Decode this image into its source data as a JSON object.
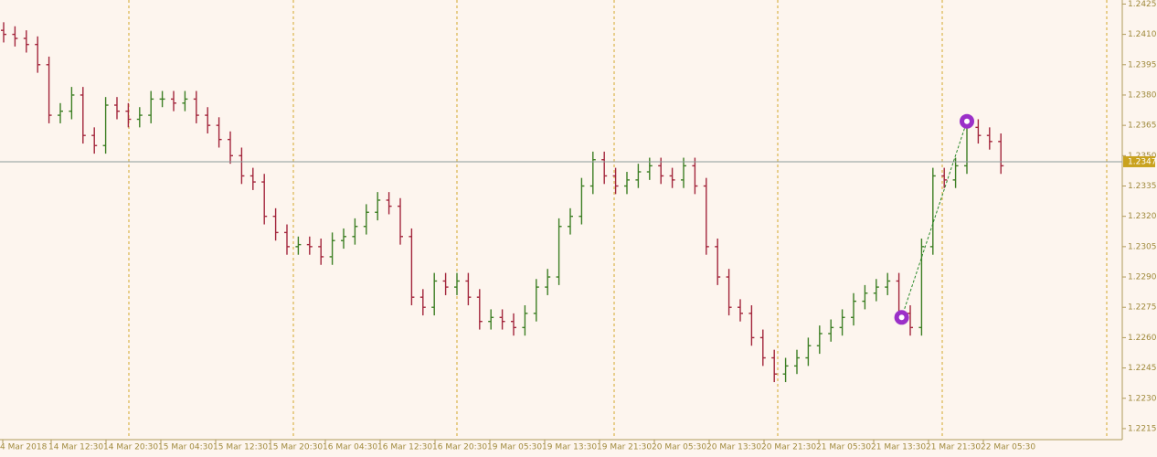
{
  "chart_data": {
    "type": "ohlc",
    "x_labels": [
      "4 Mar 2018",
      "14 Mar 12:30",
      "14 Mar 20:30",
      "15 Mar 04:30",
      "15 Mar 12:30",
      "15 Mar 20:30",
      "16 Mar 04:30",
      "16 Mar 12:30",
      "16 Mar 20:30",
      "19 Mar 05:30",
      "19 Mar 13:30",
      "19 Mar 21:30",
      "20 Mar 05:30",
      "20 Mar 13:30",
      "20 Mar 21:30",
      "21 Mar 05:30",
      "21 Mar 13:30",
      "21 Mar 21:30",
      "22 Mar 05:30"
    ],
    "open": [
      1.2412,
      1.241,
      1.2408,
      1.2405,
      1.2395,
      1.237,
      1.2372,
      1.238,
      1.236,
      1.2355,
      1.2375,
      1.2372,
      1.2368,
      1.237,
      1.2378,
      1.2378,
      1.2376,
      1.2378,
      1.237,
      1.2365,
      1.2358,
      1.235,
      1.234,
      1.2337,
      1.232,
      1.2312,
      1.2305,
      1.2306,
      1.2305,
      1.23,
      1.2308,
      1.231,
      1.2315,
      1.2322,
      1.2328,
      1.2325,
      1.231,
      1.228,
      1.2275,
      1.2288,
      1.2285,
      1.2288,
      1.228,
      1.2268,
      1.227,
      1.2268,
      1.2265,
      1.2272,
      1.2285,
      1.229,
      1.2315,
      1.232,
      1.2335,
      1.2348,
      1.234,
      1.2335,
      1.2338,
      1.2342,
      1.2345,
      1.234,
      1.2338,
      1.2345,
      1.2335,
      1.2305,
      1.229,
      1.2275,
      1.2272,
      1.226,
      1.225,
      1.2242,
      1.2246,
      1.225,
      1.2256,
      1.2262,
      1.2265,
      1.227,
      1.2278,
      1.2282,
      1.2285,
      1.2288,
      1.2272,
      1.2265,
      1.2305,
      1.234,
      1.2338,
      1.2345,
      1.2364,
      1.236,
      1.2357
    ],
    "high": [
      1.2416,
      1.2414,
      1.2412,
      1.2409,
      1.2399,
      1.2376,
      1.2384,
      1.2384,
      1.2364,
      1.2379,
      1.2379,
      1.2376,
      1.2374,
      1.2382,
      1.2382,
      1.2382,
      1.2382,
      1.2382,
      1.2374,
      1.2369,
      1.2362,
      1.2354,
      1.2344,
      1.2341,
      1.2324,
      1.2316,
      1.231,
      1.231,
      1.2309,
      1.2312,
      1.2314,
      1.2319,
      1.2326,
      1.2332,
      1.2332,
      1.2329,
      1.2314,
      1.2284,
      1.2292,
      1.2292,
      1.2292,
      1.2292,
      1.2284,
      1.2274,
      1.2274,
      1.2272,
      1.2276,
      1.2289,
      1.2294,
      1.2319,
      1.2324,
      1.2339,
      1.2352,
      1.2352,
      1.2344,
      1.2342,
      1.2346,
      1.2349,
      1.2349,
      1.2344,
      1.2349,
      1.2349,
      1.2339,
      1.2309,
      1.2294,
      1.2279,
      1.2276,
      1.2264,
      1.2254,
      1.225,
      1.2254,
      1.226,
      1.2266,
      1.2269,
      1.2274,
      1.2282,
      1.2286,
      1.2289,
      1.2292,
      1.2292,
      1.2276,
      1.2309,
      1.2344,
      1.2344,
      1.2349,
      1.2368,
      1.2368,
      1.2364,
      1.2361
    ],
    "low": [
      1.2406,
      1.2404,
      1.2401,
      1.2391,
      1.2366,
      1.2366,
      1.2368,
      1.2356,
      1.2351,
      1.2351,
      1.2368,
      1.2364,
      1.2364,
      1.2366,
      1.2374,
      1.2372,
      1.2372,
      1.2366,
      1.2361,
      1.2354,
      1.2346,
      1.2336,
      1.2333,
      1.2316,
      1.2308,
      1.2301,
      1.2301,
      1.2301,
      1.2296,
      1.2296,
      1.2304,
      1.2306,
      1.2311,
      1.2318,
      1.2321,
      1.2306,
      1.2276,
      1.2271,
      1.2271,
      1.2281,
      1.2281,
      1.2276,
      1.2264,
      1.2264,
      1.2264,
      1.2261,
      1.2261,
      1.2268,
      1.2281,
      1.2286,
      1.2311,
      1.2316,
      1.2331,
      1.2336,
      1.2331,
      1.2331,
      1.2334,
      1.2338,
      1.2336,
      1.2334,
      1.2334,
      1.2331,
      1.2301,
      1.2286,
      1.2271,
      1.2268,
      1.2256,
      1.2246,
      1.2238,
      1.2238,
      1.2242,
      1.2246,
      1.2252,
      1.2258,
      1.2261,
      1.2266,
      1.2274,
      1.2278,
      1.2281,
      1.2268,
      1.2261,
      1.2261,
      1.2301,
      1.2334,
      1.2334,
      1.2341,
      1.2356,
      1.2353,
      1.2341
    ],
    "close": [
      1.241,
      1.2408,
      1.2405,
      1.2395,
      1.237,
      1.2372,
      1.238,
      1.236,
      1.2355,
      1.2375,
      1.2372,
      1.2368,
      1.237,
      1.2378,
      1.2378,
      1.2376,
      1.2378,
      1.237,
      1.2365,
      1.2358,
      1.235,
      1.234,
      1.2337,
      1.232,
      1.2312,
      1.2305,
      1.2306,
      1.2305,
      1.23,
      1.2308,
      1.231,
      1.2315,
      1.2322,
      1.2328,
      1.2325,
      1.231,
      1.228,
      1.2275,
      1.2288,
      1.2285,
      1.2288,
      1.228,
      1.2268,
      1.227,
      1.2268,
      1.2265,
      1.2272,
      1.2285,
      1.229,
      1.2315,
      1.232,
      1.2335,
      1.2348,
      1.234,
      1.2335,
      1.2338,
      1.2342,
      1.2345,
      1.234,
      1.2338,
      1.2345,
      1.2335,
      1.2305,
      1.229,
      1.2275,
      1.2272,
      1.226,
      1.225,
      1.2242,
      1.2246,
      1.225,
      1.2256,
      1.2262,
      1.2265,
      1.227,
      1.2278,
      1.2282,
      1.2285,
      1.2288,
      1.2272,
      1.2265,
      1.2305,
      1.234,
      1.2338,
      1.2345,
      1.2364,
      1.236,
      1.2357,
      1.2345
    ],
    "up_color": "#3d7f24",
    "down_color": "#a3263c",
    "current_price": 1.2347,
    "trade": {
      "entry": 1.227,
      "exit": 1.2367
    },
    "ylim": [
      1.221,
      1.2427
    ],
    "yticks": [
      1.2215,
      {
        "value": 1.223,
        "label": "1.2230"
      },
      1.2245,
      {
        "value": 1.226,
        "label": "1.2260"
      },
      1.2275,
      {
        "value": 1.229,
        "label": "1.2290"
      },
      1.2305,
      {
        "value": 1.232,
        "label": "1.2320"
      },
      1.2335,
      {
        "value": 1.235,
        "label": "1.2350"
      },
      1.2365,
      {
        "value": 1.238,
        "label": "1.2380"
      },
      1.2395,
      {
        "value": 1.241,
        "label": "1.2410"
      },
      1.2425
    ]
  }
}
